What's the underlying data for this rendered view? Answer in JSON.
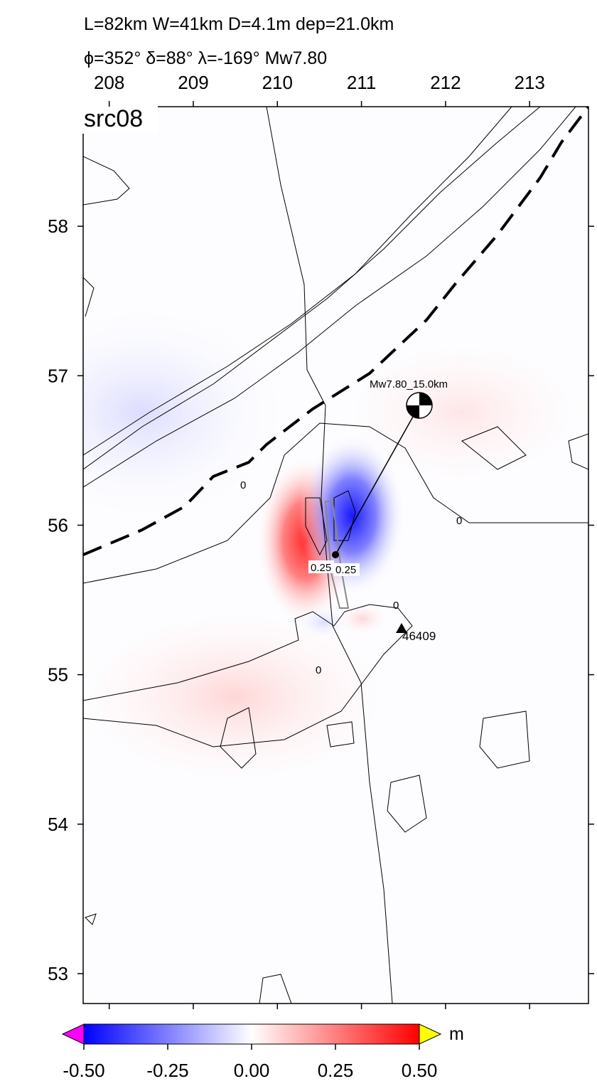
{
  "title_lines": [
    "L=82km W=41km D=4.1m dep=21.0km",
    "ϕ=352° δ=88° λ=-169° Mw7.80"
  ],
  "panel_label": "src08",
  "map": {
    "xlim": [
      207.69,
      213.7
    ],
    "ylim": [
      52.8,
      58.8
    ],
    "xticks": [
      208,
      209,
      210,
      211,
      212,
      213
    ],
    "yticks": [
      53,
      54,
      55,
      56,
      57,
      58
    ]
  },
  "annotations": {
    "mechanism": "Mw7.80_15.0km",
    "station": "46409",
    "contour_labels": [
      "0",
      "0",
      "0",
      "0",
      "0.25",
      "0.25"
    ]
  },
  "colorbar": {
    "lim": [
      -0.5,
      0.5
    ],
    "ticks": [
      {
        "value": -0.5,
        "label": "-0.50"
      },
      {
        "value": -0.25,
        "label": "-0.25"
      },
      {
        "value": 0,
        "label": "0.00"
      },
      {
        "value": 0.25,
        "label": "0.25"
      },
      {
        "value": 0.5,
        "label": "0.50"
      }
    ],
    "unit": "m"
  }
}
